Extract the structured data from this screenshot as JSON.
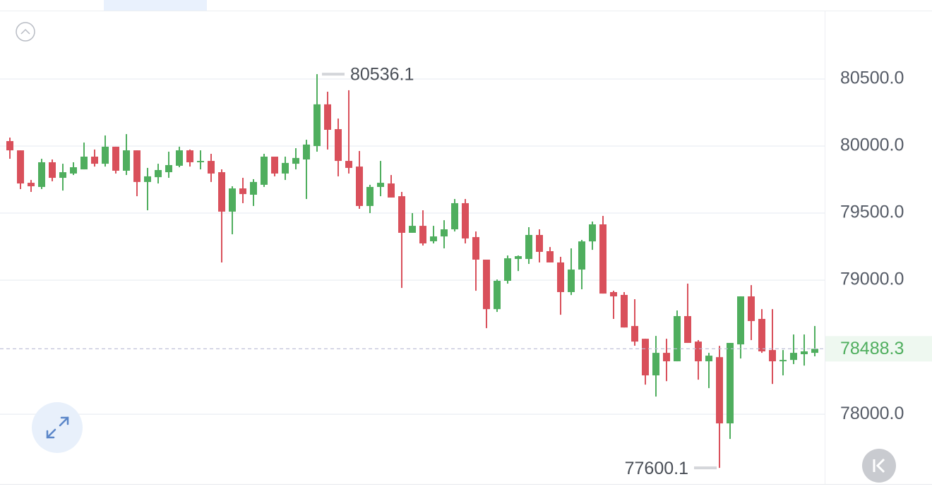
{
  "chart_data": {
    "type": "candlestick",
    "up_color": "#4fae5e",
    "down_color": "#d9505b",
    "grid": true,
    "ylim": [
      77480,
      81010
    ],
    "yticks": [
      {
        "value": 80500,
        "label": "80500.0"
      },
      {
        "value": 80000,
        "label": "80000.0"
      },
      {
        "value": 79500,
        "label": "79500.0"
      },
      {
        "value": 79000,
        "label": "79000.0"
      },
      {
        "value": 78000,
        "label": "78000.0"
      }
    ],
    "open": [
      80037,
      79968,
      79726,
      79695,
      79879,
      79763,
      79795,
      79826,
      79921,
      79868,
      79995,
      79816,
      79968,
      79732,
      79768,
      79805,
      79853,
      79968,
      79879,
      79889,
      79805,
      79511,
      79684,
      79637,
      79711,
      79921,
      79795,
      79868,
      79900,
      80000,
      80311,
      80126,
      79889,
      79847,
      79553,
      79695,
      79721,
      79626,
      79353,
      79405,
      79290,
      79326,
      79379,
      79574,
      79321,
      79153,
      78784,
      78995,
      79158,
      79158,
      79337,
      79216,
      79132,
      78911,
      79079,
      79289,
      79416,
      78911,
      78890,
      78658,
      78563,
      78290,
      78458,
      78395,
      78732,
      78542,
      78395,
      78426,
      77932,
      78521,
      78879,
      78711,
      78479,
      78395,
      78405,
      78448,
      78458
    ],
    "high": [
      80063,
      79968,
      79747,
      79905,
      79900,
      79868,
      79879,
      80026,
      79974,
      80079,
      79995,
      80089,
      79968,
      79837,
      79868,
      79958,
      79995,
      79974,
      79968,
      79942,
      79826,
      79700,
      79763,
      79753,
      79942,
      79921,
      79921,
      79984,
      80047,
      80536.1,
      80405,
      80205,
      80416,
      79963,
      79711,
      79889,
      79784,
      79658,
      79500,
      79521,
      79405,
      79447,
      79605,
      79605,
      79363,
      79153,
      79005,
      79184,
      79184,
      79395,
      79379,
      79247,
      79174,
      79237,
      79300,
      79437,
      79479,
      78921,
      78911,
      78858,
      78563,
      78584,
      78563,
      78774,
      78974,
      78553,
      78458,
      78510,
      78532,
      78879,
      78963,
      78784,
      78784,
      78479,
      78595,
      78595,
      78658
    ],
    "low": [
      79905,
      79679,
      79658,
      79679,
      79737,
      79668,
      79784,
      79826,
      79847,
      79847,
      79795,
      79784,
      79626,
      79521,
      79721,
      79763,
      79842,
      79847,
      79826,
      79732,
      79132,
      79342,
      79574,
      79553,
      79695,
      79774,
      79747,
      79826,
      79605,
      79958,
      79974,
      79774,
      79795,
      79532,
      79500,
      79626,
      79616,
      78942,
      79353,
      79258,
      79274,
      79237,
      79363,
      79274,
      78921,
      78642,
      78763,
      78974,
      79068,
      79121,
      79132,
      79132,
      78742,
      78889,
      78932,
      79226,
      78900,
      78711,
      78647,
      78511,
      78221,
      78132,
      78247,
      78395,
      78532,
      78258,
      78195,
      77600.1,
      77816,
      78416,
      78553,
      78458,
      78226,
      78290,
      78374,
      78363,
      78432
    ],
    "close": [
      79968,
      79721,
      79700,
      79879,
      79763,
      79805,
      79842,
      79921,
      79868,
      79995,
      79816,
      79968,
      79732,
      79774,
      79821,
      79858,
      79968,
      79879,
      79889,
      79795,
      79511,
      79684,
      79642,
      79732,
      79921,
      79795,
      79874,
      79911,
      80011,
      80311,
      80121,
      79889,
      79837,
      79553,
      79695,
      79726,
      79616,
      79353,
      79405,
      79274,
      79326,
      79379,
      79574,
      79311,
      79153,
      78784,
      78995,
      79163,
      79179,
      79337,
      79211,
      79132,
      78911,
      79079,
      79289,
      79416,
      78900,
      78879,
      78647,
      78542,
      78290,
      78458,
      78395,
      78732,
      78532,
      78395,
      78437,
      77932,
      78532,
      78879,
      78695,
      78469,
      78395,
      78405,
      78458,
      78469,
      78488.3
    ]
  }
}
